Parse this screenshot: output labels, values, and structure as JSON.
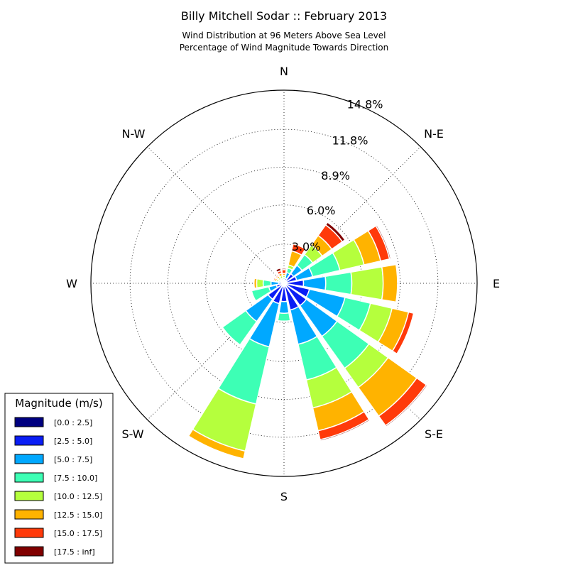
{
  "title": "Billy Mitchell Sodar :: February 2013",
  "subtitle_lines": [
    "Wind Distribution at 96 Meters Above Sea Level",
    "Percentage of Wind Magnitude Towards Direction"
  ],
  "directions": {
    "n": "N",
    "ne": "N-E",
    "e": "E",
    "se": "S-E",
    "s": "S",
    "sw": "S-W",
    "w": "W",
    "nw": "N-W"
  },
  "ring_labels": [
    "3.0%",
    "6.0%",
    "8.9%",
    "11.8%",
    "14.8%"
  ],
  "legend": {
    "title": "Magnitude (m/s)",
    "bins": [
      {
        "label": "[0.0 : 2.5]",
        "color": "#000080"
      },
      {
        "label": "[2.5 : 5.0]",
        "color": "#0a1ef5"
      },
      {
        "label": "[5.0 : 7.5]",
        "color": "#00a8ff"
      },
      {
        "label": "[7.5 : 10.0]",
        "color": "#3dffb5"
      },
      {
        "label": "[10.0 : 12.5]",
        "color": "#b5ff3d"
      },
      {
        "label": "[12.5 : 15.0]",
        "color": "#ffb300"
      },
      {
        "label": "[15.0 : 17.5]",
        "color": "#ff3a0a"
      },
      {
        "label": "[17.5 : inf]",
        "color": "#800000"
      }
    ]
  },
  "chart_data": {
    "type": "windrose",
    "title": "Billy Mitchell Sodar :: February 2013",
    "rmax": 14.8,
    "ring_ticks": [
      3.0,
      6.0,
      8.9,
      11.8,
      14.8
    ],
    "bins": [
      "[0.0 : 2.5]",
      "[2.5 : 5.0]",
      "[5.0 : 7.5]",
      "[7.5 : 10.0]",
      "[10.0 : 12.5]",
      "[12.5 : 15.0]",
      "[15.0 : 17.5]",
      "[17.5 : inf]"
    ],
    "sectors": [
      {
        "direction_deg": 0,
        "cumulative": [
          0.1,
          0.2,
          0.3,
          0.45,
          0.6,
          0.75,
          1.05,
          1.15
        ]
      },
      {
        "direction_deg": 22.5,
        "cumulative": [
          0.1,
          0.4,
          0.85,
          1.2,
          1.45,
          2.55,
          3.1,
          3.1
        ]
      },
      {
        "direction_deg": 45,
        "cumulative": [
          0.1,
          0.9,
          1.7,
          2.7,
          3.6,
          4.5,
          5.5,
          5.75
        ]
      },
      {
        "direction_deg": 67.5,
        "cumulative": [
          0.1,
          1.0,
          2.25,
          4.4,
          6.3,
          7.6,
          8.3,
          8.4
        ]
      },
      {
        "direction_deg": 90,
        "cumulative": [
          0.1,
          1.5,
          3.2,
          5.2,
          7.6,
          8.7,
          8.7,
          8.7
        ]
      },
      {
        "direction_deg": 112.5,
        "cumulative": [
          0.1,
          2.0,
          4.8,
          6.8,
          8.5,
          9.8,
          10.2,
          10.2
        ]
      },
      {
        "direction_deg": 135,
        "cumulative": [
          0.1,
          2.1,
          5.0,
          8.0,
          9.8,
          12.5,
          13.4,
          13.5
        ]
      },
      {
        "direction_deg": 157.5,
        "cumulative": [
          0.1,
          2.1,
          4.8,
          7.6,
          9.8,
          11.6,
          12.3,
          12.4
        ]
      },
      {
        "direction_deg": 180,
        "cumulative": [
          0.1,
          1.4,
          2.3,
          2.9,
          2.9,
          2.9,
          2.9,
          2.9
        ]
      },
      {
        "direction_deg": 202.5,
        "cumulative": [
          0.1,
          1.6,
          5.0,
          9.5,
          13.2,
          13.8,
          13.8,
          13.8
        ]
      },
      {
        "direction_deg": 225,
        "cumulative": [
          0.1,
          1.5,
          3.6,
          5.8,
          5.8,
          5.8,
          5.8,
          5.8
        ]
      },
      {
        "direction_deg": 247.5,
        "cumulative": [
          0.1,
          0.6,
          1.2,
          2.55,
          2.55,
          2.55,
          2.55,
          2.55
        ]
      },
      {
        "direction_deg": 270,
        "cumulative": [
          0.1,
          0.4,
          1.0,
          1.6,
          2.1,
          2.3,
          2.3,
          2.3
        ]
      },
      {
        "direction_deg": 292.5,
        "cumulative": [
          0.1,
          0.2,
          0.35,
          0.45,
          0.6,
          0.75,
          0.85,
          0.85
        ]
      },
      {
        "direction_deg": 315,
        "cumulative": [
          0.1,
          0.2,
          0.3,
          0.4,
          0.55,
          0.7,
          0.8,
          0.8
        ]
      },
      {
        "direction_deg": 337.5,
        "cumulative": [
          0.1,
          0.2,
          0.3,
          0.4,
          0.6,
          0.8,
          1.0,
          1.2
        ]
      }
    ]
  }
}
